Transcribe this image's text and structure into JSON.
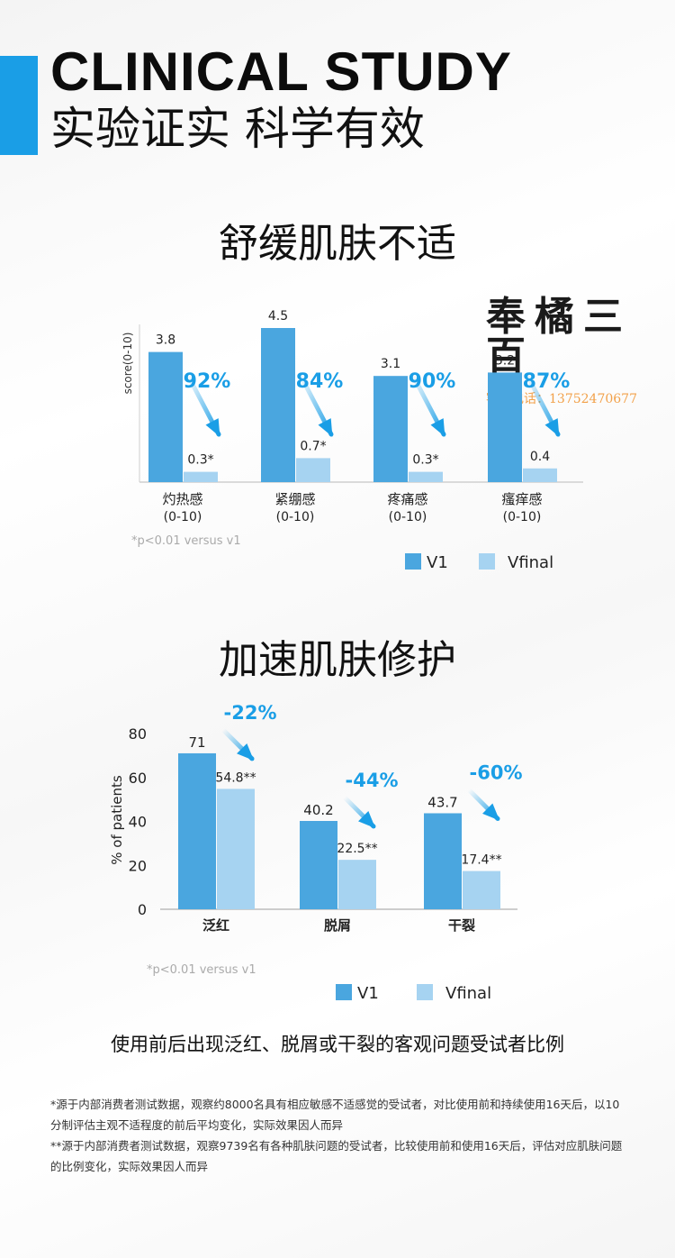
{
  "header": {
    "title_en": "CLINICAL STUDY",
    "title_cn": "实验证实 科学有效",
    "accent_color": "#1a9ee6"
  },
  "watermark": {
    "logo": "奉橘三百",
    "phone": "客服电话：13752470677"
  },
  "sections": [
    {
      "title": "舒缓肌肤不适"
    },
    {
      "title": "加速肌肤修护"
    }
  ],
  "colors": {
    "v1": "#4aa6df",
    "vfinal": "#a6d3f1",
    "percent": "#1a9ee6"
  },
  "chart_data": [
    {
      "type": "bar",
      "ylabel": "score(0-10)",
      "ylim": [
        0,
        5
      ],
      "categories": [
        "灼热感",
        "紧绷感",
        "疼痛感",
        "瘙痒感"
      ],
      "category_sublabels": [
        "(0-10)",
        "(0-10)",
        "(0-10)",
        "(0-10)"
      ],
      "series": [
        {
          "name": "V1",
          "values": [
            3.8,
            4.5,
            3.1,
            3.2
          ],
          "labels": [
            "3.8",
            "4.5",
            "3.1",
            "3.2"
          ]
        },
        {
          "name": "Vfinal",
          "values": [
            0.3,
            0.7,
            0.3,
            0.4
          ],
          "labels": [
            "0.3*",
            "0.7*",
            "0.3*",
            "0.4"
          ]
        }
      ],
      "reductions": [
        "92%",
        "84%",
        "90%",
        "87%"
      ],
      "footnote": "*p<0.01 versus v1",
      "legend": [
        "V1",
        "Vfinal"
      ]
    },
    {
      "type": "bar",
      "ylabel": "% of patients",
      "ylim": [
        0,
        80
      ],
      "yticks": [
        "0",
        "20",
        "40",
        "60",
        "80"
      ],
      "categories": [
        "泛红",
        "脱屑",
        "干裂"
      ],
      "series": [
        {
          "name": "V1",
          "values": [
            71,
            40.2,
            43.7
          ],
          "labels": [
            "71",
            "40.2",
            "43.7"
          ]
        },
        {
          "name": "Vfinal",
          "values": [
            54.8,
            22.5,
            17.4
          ],
          "labels": [
            "54.8**",
            "22.5**",
            "17.4**"
          ]
        }
      ],
      "reductions": [
        "-22%",
        "-44%",
        "-60%"
      ],
      "footnote": "*p<0.01 versus v1",
      "legend": [
        "V1",
        "Vfinal"
      ]
    }
  ],
  "caption": "使用前后出现泛红、脱屑或干裂的客观问题受试者比例",
  "notes": [
    "*源于内部消费者测试数据，观察约8000名具有相应敏感不适感觉的受试者，对比使用前和持续使用16天后，以10分制评估主观不适程度的前后平均变化，实际效果因人而异",
    "**源于内部消费者测试数据，观察9739名有各种肌肤问题的受试者，比较使用前和使用16天后，评估对应肌肤问题的比例变化，实际效果因人而异"
  ]
}
